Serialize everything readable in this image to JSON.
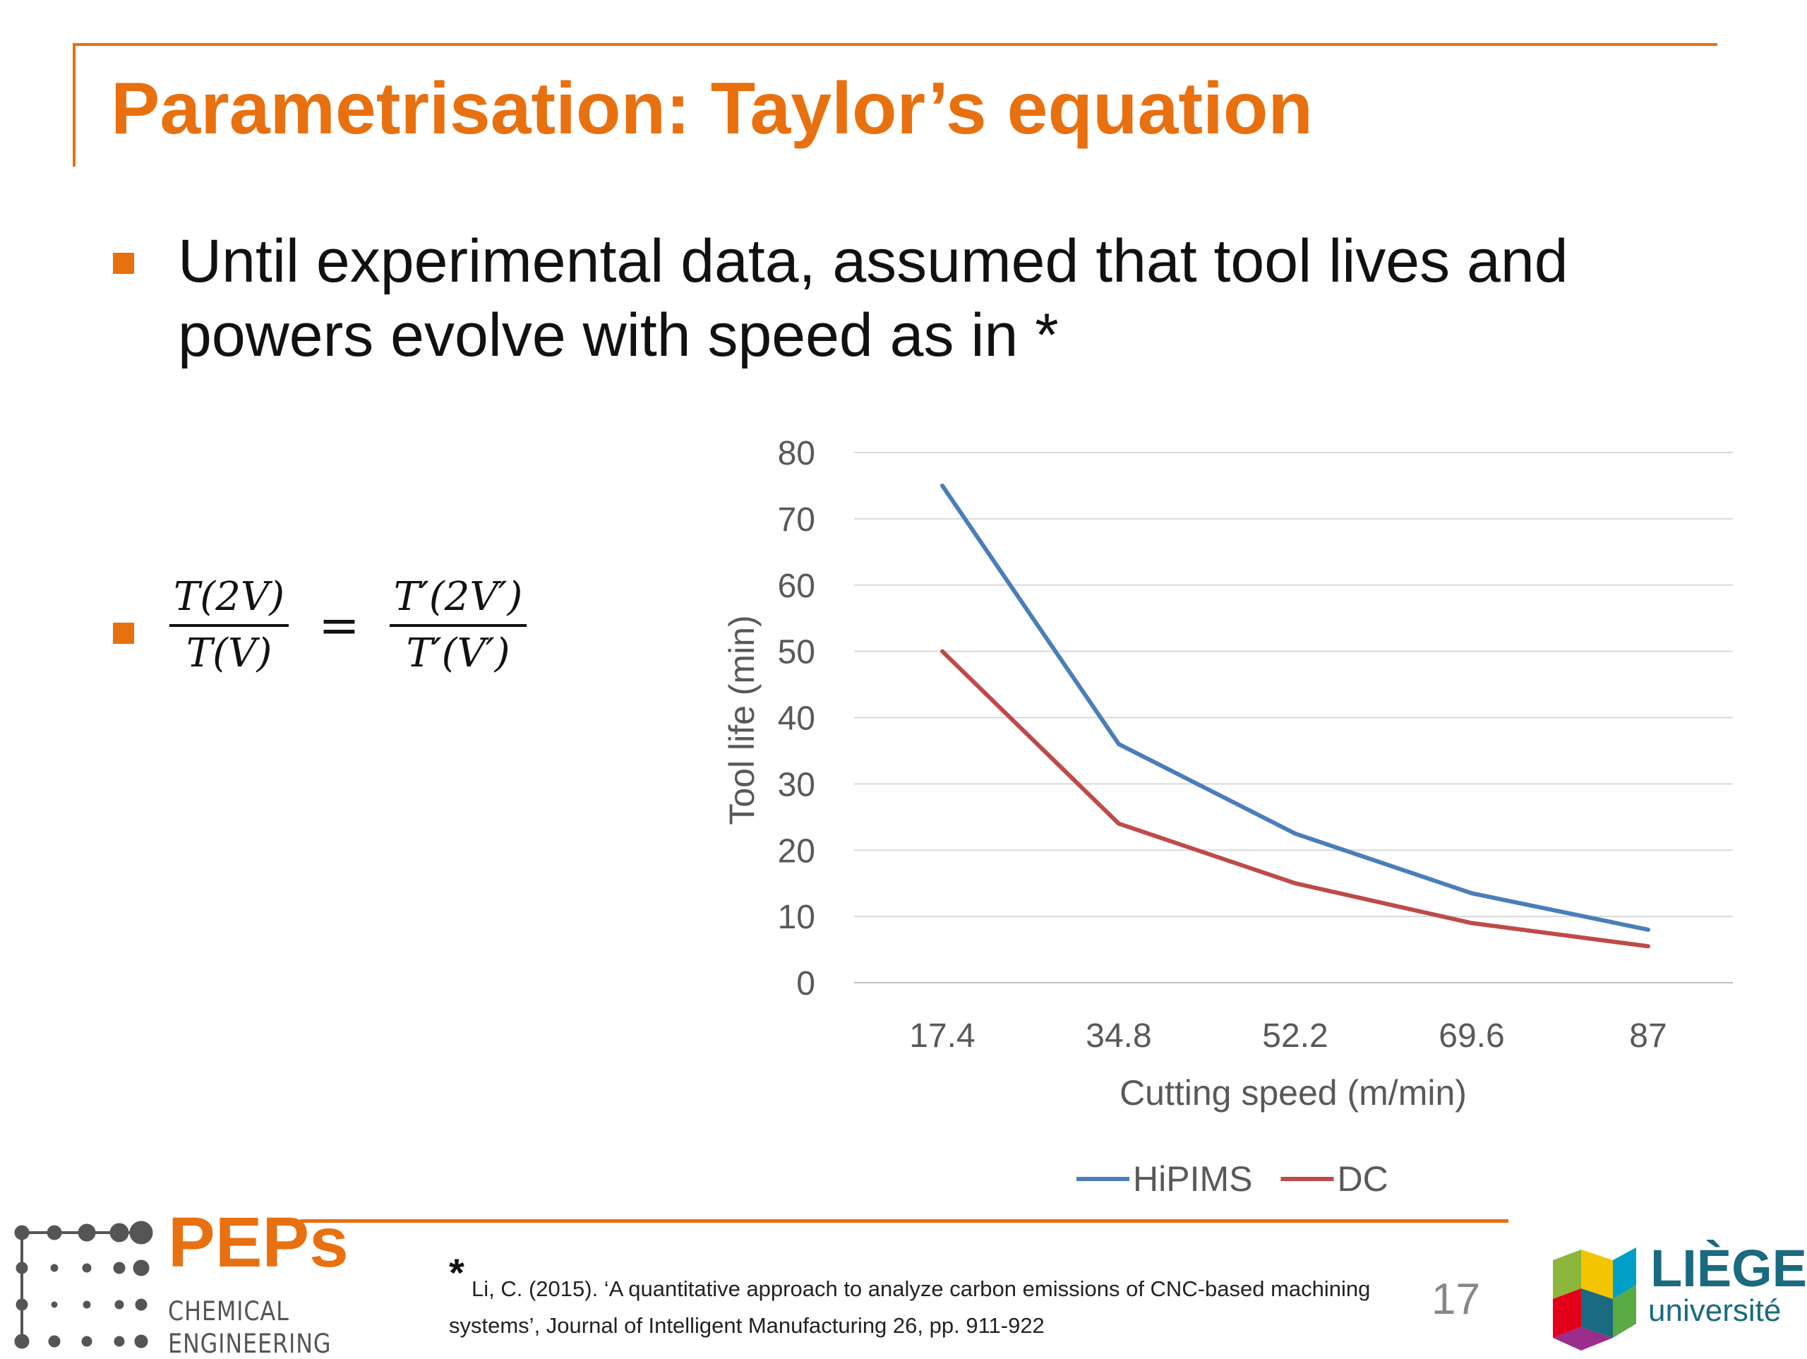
{
  "slide": {
    "title": "Parametrisation: Taylor’s equation",
    "bullet_1": "Until experimental data, assumed that tool lives and powers evolve with speed as in *",
    "formula": {
      "left_num": "T(2V)",
      "left_den": "T(V)",
      "equals": "=",
      "right_num": "T′(2V′)",
      "right_den": "T′(V′)"
    },
    "accent_color": "#E8700F"
  },
  "chart_data": {
    "type": "line",
    "categories": [
      "17.4",
      "34.8",
      "52.2",
      "69.6",
      "87"
    ],
    "series": [
      {
        "name": "HiPIMS",
        "color": "#4A7EBB",
        "values": [
          75,
          36,
          22.5,
          13.5,
          8
        ]
      },
      {
        "name": "DC",
        "color": "#BE4B48",
        "values": [
          50,
          24,
          15,
          9,
          5.5
        ]
      }
    ],
    "title": "",
    "xlabel": "Cutting speed (m/min)",
    "ylabel": "Tool life (min)",
    "ylim": [
      0,
      80
    ],
    "yticks": [
      "0",
      "10",
      "20",
      "30",
      "40",
      "50",
      "60",
      "70",
      "80"
    ],
    "grid": true,
    "legend": "bottom"
  },
  "footer": {
    "peps_name": "PEPs",
    "peps_line1": "CHEMICAL",
    "peps_line2": "ENGINEERING",
    "ref_star": "*",
    "reference": "Li, C. (2015). ‘A quantitative approach to analyze carbon emissions of CNC-based machining systems’, Journal of Intelligent Manufacturing 26, pp. 911-922",
    "page_number": "17",
    "liege_name": "LIÈGE",
    "liege_sub": "université"
  }
}
